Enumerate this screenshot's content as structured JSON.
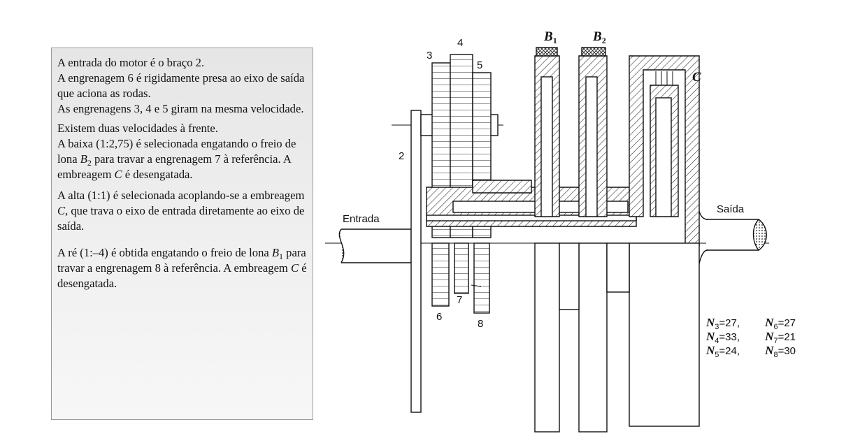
{
  "description_box": {
    "block1": [
      "A entrada do motor é o braço 2.",
      "A engrenagem 6 é rigidamente presa ao eixo de saída que aciona as rodas.",
      "As engrenagens 3, 4 e 5 giram na mesma velocidade."
    ],
    "block2": {
      "line1": "Existem duas velocidades à frente.",
      "low_a": "A baixa (1:2,75) é selecionada engatando o freio de lona ",
      "low_sym": "B",
      "low_sub": "2",
      "low_b": " para travar a engrenagem 7 à referência. A embreagem ",
      "low_c": "C",
      "low_d": " é desengatada."
    },
    "block3": {
      "a": "A alta (1:1) é selecionada acoplando-se a embreagem ",
      "c": "C",
      "b": ", que trava o eixo de entrada diretamente ao eixo de saída."
    },
    "block4": {
      "a": "A ré (1:–4) é obtida engatando o freio de lona ",
      "sym": "B",
      "sub": "1",
      "b": " para travar a engrenagem 8 à referência. A embreagem ",
      "c": "C",
      "d": " é desengatada."
    }
  },
  "diagram": {
    "brake1": {
      "sym": "B",
      "sub": "1"
    },
    "brake2": {
      "sym": "B",
      "sub": "2"
    },
    "clutch": "C",
    "input_label": "Entrada",
    "output_label": "Saída",
    "arm_label": "2",
    "gear_labels": {
      "g3": "3",
      "g4": "4",
      "g5": "5",
      "g6": "6",
      "g7": "7",
      "g8": "8"
    }
  },
  "tooth_counts": [
    {
      "sym": "N",
      "sub": "3",
      "value": "=27,"
    },
    {
      "sym": "N",
      "sub": "6",
      "value": "=27"
    },
    {
      "sym": "N",
      "sub": "4",
      "value": "=33,"
    },
    {
      "sym": "N",
      "sub": "7",
      "value": "=21"
    },
    {
      "sym": "N",
      "sub": "5",
      "value": "=24,"
    },
    {
      "sym": "N",
      "sub": "8",
      "value": "=30"
    }
  ]
}
